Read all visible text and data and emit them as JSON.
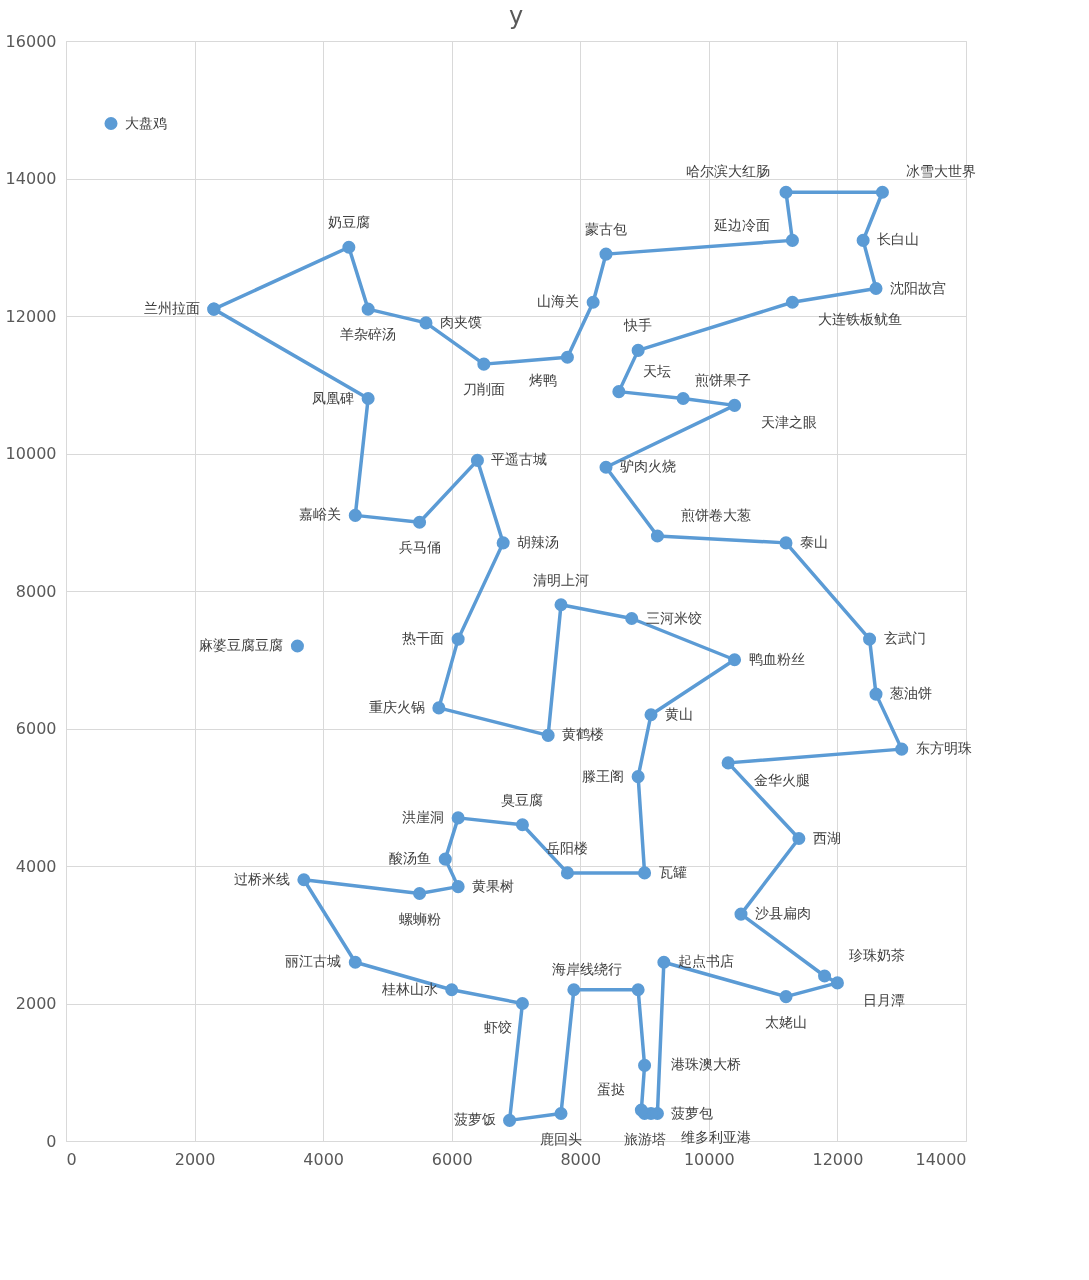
{
  "chart_data": {
    "type": "scatter",
    "title": "y",
    "xlim": [
      0,
      14000
    ],
    "ylim": [
      0,
      16000
    ],
    "xticks": [
      0,
      2000,
      4000,
      6000,
      8000,
      10000,
      12000,
      14000
    ],
    "yticks": [
      0,
      2000,
      4000,
      6000,
      8000,
      10000,
      12000,
      14000,
      16000
    ],
    "grid": true,
    "marker": "circle",
    "series": [
      {
        "type": "scatter",
        "color": "#5b9bd5",
        "x": [
          700,
          3600
        ],
        "values": [
          14800,
          7200
        ],
        "value_labels": [
          "大盘鸡",
          "麻婆豆腐豆腐"
        ]
      },
      {
        "type": "scatter",
        "line_style": "solid",
        "color": "#5b9bd5",
        "x": [
          2300,
          4400,
          4700,
          5600,
          6500,
          7800,
          8200,
          8400,
          11300,
          11200,
          12700,
          12400,
          12600,
          11300,
          8900,
          8600,
          9600,
          10400,
          8400,
          9200,
          11200,
          12500,
          12600,
          13000,
          10300,
          11400,
          10500,
          11800,
          12000,
          11200,
          9300,
          9200,
          9100,
          9000,
          8950,
          9000,
          8900,
          7900,
          7700,
          6900,
          7100,
          6000,
          4500,
          3700,
          5500,
          6100,
          5900,
          6100,
          7100,
          7800,
          9000,
          8900,
          9100,
          10400,
          8800,
          7700,
          7500,
          5800,
          6100,
          6800,
          6400,
          5500,
          4500,
          4700,
          2300
        ],
        "values": [
          12100,
          13000,
          12100,
          11900,
          11300,
          11400,
          12200,
          12900,
          13100,
          13800,
          13800,
          13100,
          12400,
          12200,
          11500,
          10900,
          10800,
          10700,
          9800,
          8800,
          8700,
          7300,
          6500,
          5700,
          5500,
          4400,
          3300,
          2400,
          2300,
          2100,
          2600,
          400,
          400,
          400,
          450,
          1100,
          2200,
          2200,
          400,
          300,
          2000,
          2200,
          2600,
          3800,
          3600,
          3700,
          4100,
          4700,
          4600,
          3900,
          3900,
          5300,
          6200,
          7000,
          7600,
          7800,
          5900,
          6300,
          7300,
          8700,
          9900,
          9000,
          9100,
          10800,
          12100
        ],
        "value_labels": [
          "兰州拉面",
          "奶豆腐",
          "羊杂碎汤",
          "肉夹馍",
          "刀削面",
          "烤鸭",
          "山海关",
          "蒙古包",
          "延边冷面",
          "哈尔滨大红肠",
          "冰雪大世界",
          "长白山",
          "沈阳故宫",
          "大连铁板鱿鱼",
          "快手",
          "天坛",
          "煎饼果子",
          "天津之眼",
          "驴肉火烧",
          "煎饼卷大葱",
          "泰山",
          "玄武门",
          "葱油饼",
          "东方明珠",
          "金华火腿",
          "西湖",
          "沙县扁肉",
          "珍珠奶茶",
          "日月潭",
          "太姥山",
          "起点书店",
          "菠萝包",
          "维多利亚港",
          "旅游塔",
          "蛋挞",
          "港珠澳大桥",
          "海岸线绕行",
          null,
          "鹿回头",
          "菠萝饭",
          "虾饺",
          "桂林山水",
          "丽江古城",
          "过桥米线",
          "螺蛳粉",
          "黄果树",
          "酸汤鱼",
          "洪崖洞",
          "臭豆腐",
          "岳阳楼",
          "瓦罐",
          "滕王阁",
          "黄山",
          "鸭血粉丝",
          "三河米饺",
          "清明上河",
          "黄鹤楼",
          "重庆火锅",
          "热干面",
          "胡辣汤",
          "平遥古城",
          "兵马俑",
          "嘉峪关",
          "凤凰碑",
          null
        ]
      }
    ]
  }
}
